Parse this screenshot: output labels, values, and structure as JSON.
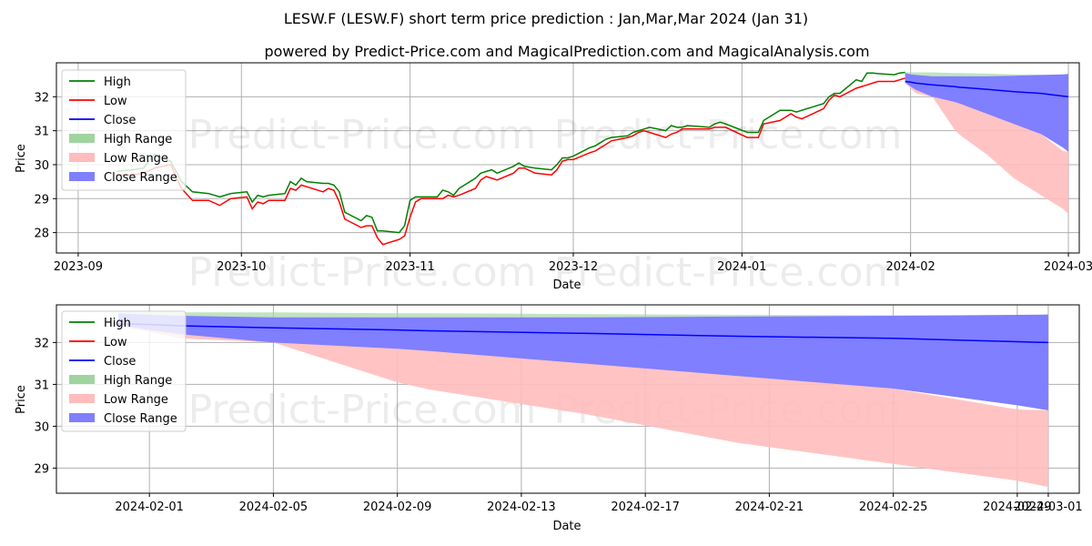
{
  "header": {
    "title": "LESW.F (LESW.F) short term price prediction : Jan,Mar,Mar 2024 (Jan 31)",
    "subtitle": "powered by Predict-Price.com and MagicalPrediction.com and MagicalAnalysis.com"
  },
  "watermark": "Predict-Price.com",
  "colors": {
    "high": "#008000",
    "low": "#ff0000",
    "close": "#0000ff",
    "high_range": "#9fd49f",
    "low_range": "#ffbcbc",
    "close_range": "#7f7fff"
  },
  "legend": {
    "placement": "upper-left",
    "items": [
      "High",
      "Low",
      "Close",
      "High Range",
      "Low Range",
      "Close Range"
    ]
  },
  "chart_data": [
    {
      "type": "line",
      "xlabel": "Date",
      "ylabel": "Price",
      "x_ticks": [
        "2023-09",
        "2023-10",
        "2023-11",
        "2023-12",
        "2024-01",
        "2024-02",
        "2024-03"
      ],
      "y_ticks": [
        "28",
        "29",
        "30",
        "31",
        "32"
      ],
      "xlim": [
        "2023-08-28",
        "2024-03-03"
      ],
      "ylim": [
        27.4,
        33.0
      ],
      "grid": true,
      "history": {
        "dates": [
          "2023-09-08",
          "2023-09-11",
          "2023-09-13",
          "2023-09-15",
          "2023-09-18",
          "2023-09-20",
          "2023-09-22",
          "2023-09-25",
          "2023-09-27",
          "2023-09-28",
          "2023-09-29",
          "2023-10-02",
          "2023-10-03",
          "2023-10-04",
          "2023-10-05",
          "2023-10-06",
          "2023-10-09",
          "2023-10-10",
          "2023-10-11",
          "2023-10-12",
          "2023-10-13",
          "2023-10-16",
          "2023-10-17",
          "2023-10-18",
          "2023-10-19",
          "2023-10-20",
          "2023-10-23",
          "2023-10-24",
          "2023-10-25",
          "2023-10-26",
          "2023-10-27",
          "2023-10-30",
          "2023-10-31",
          "2023-11-01",
          "2023-11-02",
          "2023-11-03",
          "2023-11-06",
          "2023-11-07",
          "2023-11-08",
          "2023-11-09",
          "2023-11-10",
          "2023-11-13",
          "2023-11-14",
          "2023-11-15",
          "2023-11-16",
          "2023-11-17",
          "2023-11-20",
          "2023-11-21",
          "2023-11-22",
          "2023-11-24",
          "2023-11-27",
          "2023-11-28",
          "2023-11-29",
          "2023-11-30",
          "2023-12-01",
          "2023-12-04",
          "2023-12-05",
          "2023-12-06",
          "2023-12-07",
          "2023-12-08",
          "2023-12-11",
          "2023-12-12",
          "2023-12-13",
          "2023-12-14",
          "2023-12-15",
          "2023-12-18",
          "2023-12-19",
          "2023-12-20",
          "2023-12-21",
          "2023-12-22",
          "2023-12-26",
          "2023-12-27",
          "2023-12-28",
          "2023-12-29",
          "2024-01-02",
          "2024-01-03",
          "2024-01-04",
          "2024-01-05",
          "2024-01-08",
          "2024-01-09",
          "2024-01-10",
          "2024-01-11",
          "2024-01-12",
          "2024-01-16",
          "2024-01-17",
          "2024-01-18",
          "2024-01-19",
          "2024-01-22",
          "2024-01-23",
          "2024-01-24",
          "2024-01-25",
          "2024-01-26",
          "2024-01-29",
          "2024-01-30",
          "2024-01-31"
        ],
        "high": [
          29.8,
          29.85,
          29.9,
          30.3,
          30.1,
          29.5,
          29.2,
          29.15,
          29.05,
          29.1,
          29.15,
          29.2,
          28.9,
          29.1,
          29.05,
          29.1,
          29.15,
          29.5,
          29.4,
          29.6,
          29.5,
          29.45,
          29.45,
          29.4,
          29.2,
          28.6,
          28.35,
          28.5,
          28.45,
          28.05,
          28.05,
          28.0,
          28.2,
          28.95,
          29.05,
          29.05,
          29.05,
          29.25,
          29.2,
          29.1,
          29.3,
          29.6,
          29.75,
          29.8,
          29.85,
          29.75,
          29.95,
          30.05,
          29.95,
          29.9,
          29.85,
          30.0,
          30.2,
          30.2,
          30.25,
          30.5,
          30.55,
          30.65,
          30.75,
          30.8,
          30.85,
          30.95,
          31.0,
          31.05,
          31.1,
          31.0,
          31.15,
          31.1,
          31.1,
          31.15,
          31.1,
          31.2,
          31.25,
          31.2,
          30.95,
          30.95,
          30.95,
          31.3,
          31.6,
          31.6,
          31.6,
          31.55,
          31.6,
          31.8,
          32.0,
          32.1,
          32.1,
          32.5,
          32.45,
          32.7,
          32.7,
          32.68,
          32.65,
          32.7,
          32.72
        ],
        "low": [
          29.7,
          29.7,
          29.75,
          29.9,
          30.0,
          29.3,
          28.95,
          28.95,
          28.8,
          28.9,
          29.0,
          29.05,
          28.7,
          28.9,
          28.85,
          28.95,
          28.95,
          29.3,
          29.25,
          29.4,
          29.35,
          29.2,
          29.3,
          29.25,
          28.9,
          28.4,
          28.15,
          28.2,
          28.2,
          27.85,
          27.65,
          27.8,
          27.9,
          28.45,
          28.9,
          29.0,
          29.0,
          29.0,
          29.1,
          29.05,
          29.1,
          29.3,
          29.55,
          29.65,
          29.6,
          29.55,
          29.75,
          29.9,
          29.9,
          29.75,
          29.7,
          29.85,
          30.1,
          30.15,
          30.15,
          30.35,
          30.4,
          30.5,
          30.6,
          30.7,
          30.8,
          30.85,
          30.95,
          31.0,
          30.95,
          30.8,
          30.9,
          30.95,
          31.05,
          31.05,
          31.05,
          31.1,
          31.1,
          31.1,
          30.8,
          30.8,
          30.8,
          31.2,
          31.3,
          31.4,
          31.5,
          31.4,
          31.35,
          31.65,
          31.9,
          32.05,
          32.0,
          32.25,
          32.3,
          32.35,
          32.4,
          32.45,
          32.45,
          32.5,
          32.55
        ]
      },
      "prediction": {
        "dates": [
          "2024-01-31",
          "2024-02-01",
          "2024-02-02",
          "2024-02-05",
          "2024-02-09",
          "2024-02-10",
          "2024-02-15",
          "2024-02-20",
          "2024-02-25",
          "2024-02-29",
          "2024-03-01"
        ],
        "close": [
          32.45,
          32.43,
          32.4,
          32.35,
          32.3,
          32.28,
          32.22,
          32.15,
          32.1,
          32.02,
          32.0
        ],
        "close_upper": [
          32.7,
          32.66,
          32.64,
          32.6,
          32.6,
          32.6,
          32.6,
          32.62,
          32.64,
          32.66,
          32.67
        ],
        "close_lower": [
          32.42,
          32.3,
          32.2,
          32.0,
          31.85,
          31.8,
          31.5,
          31.2,
          30.9,
          30.5,
          30.38
        ],
        "high_upper": [
          32.72,
          32.72,
          32.72,
          32.72,
          32.7,
          32.7,
          32.68,
          32.66,
          32.65,
          32.65,
          32.65
        ],
        "high_lower": [
          32.6,
          32.58,
          32.56,
          32.55,
          32.53,
          32.52,
          32.5,
          32.48,
          32.46,
          32.44,
          32.43
        ],
        "low_upper": [
          32.5,
          32.45,
          32.4,
          32.3,
          32.1,
          32.05,
          31.65,
          31.25,
          30.9,
          30.4,
          30.38
        ],
        "low_lower": [
          32.4,
          32.25,
          32.1,
          32.0,
          31.05,
          30.88,
          30.3,
          29.6,
          29.1,
          28.7,
          28.55
        ]
      }
    },
    {
      "type": "line",
      "xlabel": "Date",
      "ylabel": "Price",
      "x_ticks": [
        "2024-02-01",
        "2024-02-05",
        "2024-02-09",
        "2024-02-13",
        "2024-02-17",
        "2024-02-21",
        "2024-02-25",
        "2024-02-29",
        "2024-03-01"
      ],
      "y_ticks": [
        "29",
        "30",
        "31",
        "32"
      ],
      "xlim": [
        "2024-01-29",
        "2024-03-02"
      ],
      "ylim": [
        28.4,
        32.9
      ],
      "grid": true
    }
  ]
}
